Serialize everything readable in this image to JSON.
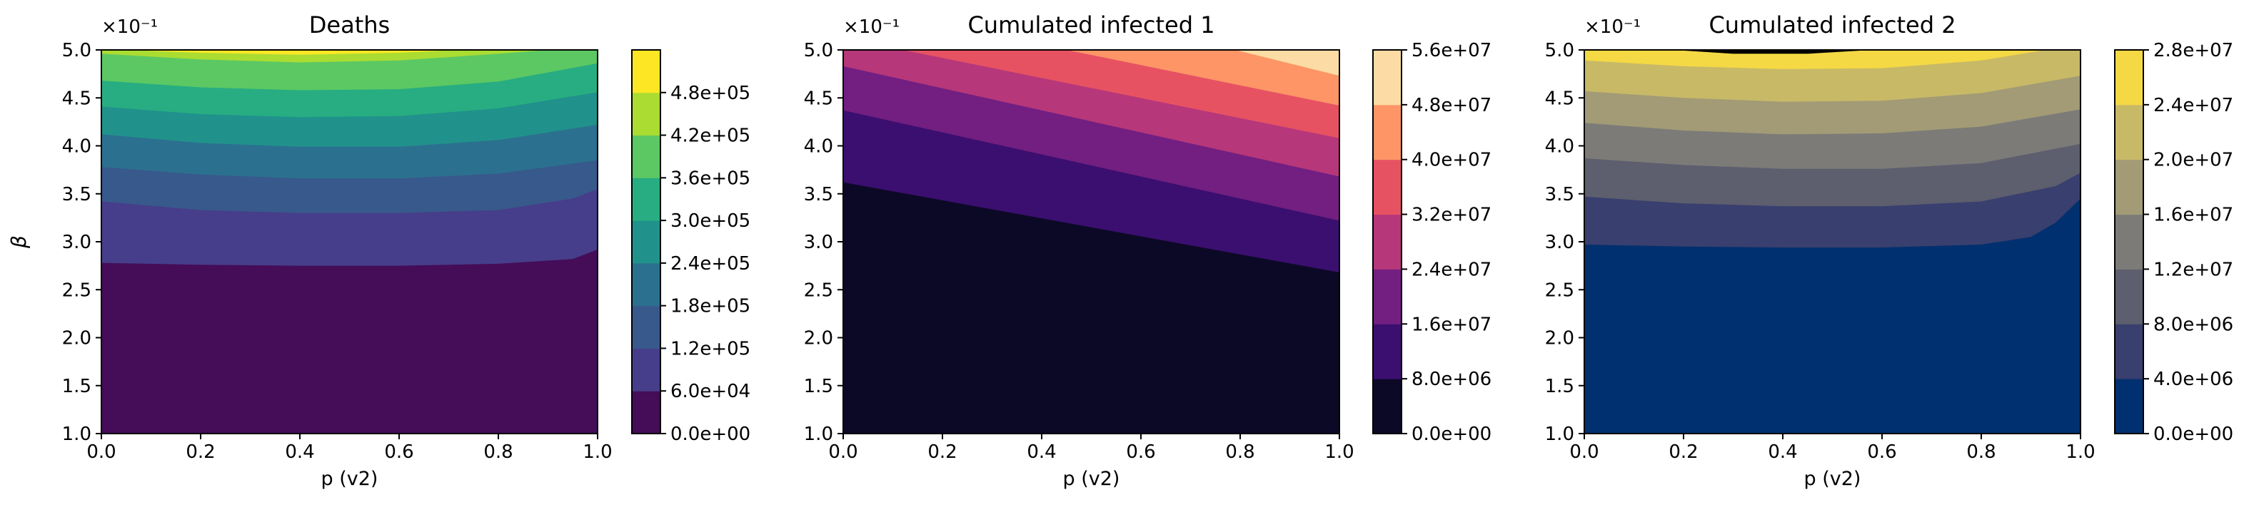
{
  "chart_data": [
    {
      "type": "contour",
      "title": "Deaths",
      "xlabel": "p (v2)",
      "ylabel": "β",
      "y_multiplier": "×10⁻¹",
      "xlim": [
        0.0,
        1.0
      ],
      "ylim": [
        1.0,
        5.0
      ],
      "x_ticks": [
        "0.0",
        "0.2",
        "0.4",
        "0.6",
        "0.8",
        "1.0"
      ],
      "y_ticks": [
        "1.0",
        "1.5",
        "2.0",
        "2.5",
        "3.0",
        "3.5",
        "4.0",
        "4.5",
        "5.0"
      ],
      "colorbar_levels": [
        "0.0e+00",
        "6.0e+04",
        "1.2e+05",
        "1.8e+05",
        "2.4e+05",
        "3.0e+05",
        "3.6e+05",
        "4.2e+05",
        "4.8e+05"
      ],
      "colors": [
        "#450c58",
        "#463e8a",
        "#38598b",
        "#2c708f",
        "#21918c",
        "#27ad81",
        "#5cc863",
        "#aadc32",
        "#fde725"
      ],
      "boundaries": [
        {
          "x": [
            0.0,
            0.2,
            0.4,
            0.6,
            0.8,
            0.95,
            1.0
          ],
          "y": [
            2.78,
            2.76,
            2.75,
            2.75,
            2.77,
            2.82,
            2.92
          ]
        },
        {
          "x": [
            0.0,
            0.2,
            0.4,
            0.6,
            0.8,
            0.95,
            1.0
          ],
          "y": [
            3.42,
            3.33,
            3.3,
            3.3,
            3.33,
            3.45,
            3.55
          ]
        },
        {
          "x": [
            0.0,
            0.2,
            0.4,
            0.6,
            0.8,
            1.0
          ],
          "y": [
            3.78,
            3.7,
            3.66,
            3.66,
            3.71,
            3.85
          ]
        },
        {
          "x": [
            0.0,
            0.2,
            0.4,
            0.6,
            0.8,
            1.0
          ],
          "y": [
            4.12,
            4.03,
            3.99,
            3.99,
            4.06,
            4.22
          ]
        },
        {
          "x": [
            0.0,
            0.2,
            0.4,
            0.6,
            0.8,
            1.0
          ],
          "y": [
            4.41,
            4.33,
            4.3,
            4.31,
            4.39,
            4.56
          ]
        },
        {
          "x": [
            0.0,
            0.2,
            0.4,
            0.6,
            0.8,
            1.0
          ],
          "y": [
            4.68,
            4.61,
            4.58,
            4.59,
            4.67,
            4.86
          ]
        },
        {
          "x": [
            0.0,
            0.2,
            0.4,
            0.6,
            0.8,
            0.9
          ],
          "y": [
            4.96,
            4.9,
            4.87,
            4.89,
            4.96,
            5.0
          ]
        },
        {
          "x": [
            0.05,
            0.2,
            0.4,
            0.6,
            0.72
          ],
          "y": [
            5.0,
            4.97,
            4.95,
            4.97,
            5.0
          ]
        }
      ]
    },
    {
      "type": "contour",
      "title": "Cumulated infected 1",
      "xlabel": "p (v2)",
      "ylabel": "",
      "y_multiplier": "×10⁻¹",
      "xlim": [
        0.0,
        1.0
      ],
      "ylim": [
        1.0,
        5.0
      ],
      "x_ticks": [
        "0.0",
        "0.2",
        "0.4",
        "0.6",
        "0.8",
        "1.0"
      ],
      "y_ticks": [
        "1.0",
        "1.5",
        "2.0",
        "2.5",
        "3.0",
        "3.5",
        "4.0",
        "4.5",
        "5.0"
      ],
      "colorbar_levels": [
        "0.0e+00",
        "8.0e+06",
        "1.6e+07",
        "2.4e+07",
        "3.2e+07",
        "4.0e+07",
        "4.8e+07",
        "5.6e+07"
      ],
      "colors": [
        "#0c0927",
        "#3b0f70",
        "#721f81",
        "#b6377a",
        "#e75263",
        "#fd9567",
        "#fcdca4"
      ],
      "boundaries": [
        {
          "x": [
            0.0,
            1.0
          ],
          "y": [
            3.62,
            2.68
          ]
        },
        {
          "x": [
            0.0,
            1.0
          ],
          "y": [
            4.37,
            3.22
          ]
        },
        {
          "x": [
            0.0,
            1.0
          ],
          "y": [
            4.83,
            3.68
          ]
        },
        {
          "x": [
            0.12,
            1.0
          ],
          "y": [
            5.0,
            4.08
          ]
        },
        {
          "x": [
            0.45,
            1.0
          ],
          "y": [
            5.0,
            4.42
          ]
        },
        {
          "x": [
            0.79,
            1.0
          ],
          "y": [
            5.0,
            4.73
          ]
        }
      ]
    },
    {
      "type": "contour",
      "title": "Cumulated infected 2",
      "xlabel": "p (v2)",
      "ylabel": "",
      "y_multiplier": "×10⁻¹",
      "xlim": [
        0.0,
        1.0
      ],
      "ylim": [
        1.0,
        5.0
      ],
      "x_ticks": [
        "0.0",
        "0.2",
        "0.4",
        "0.6",
        "0.8",
        "1.0"
      ],
      "y_ticks": [
        "1.0",
        "1.5",
        "2.0",
        "2.5",
        "3.0",
        "3.5",
        "4.0",
        "4.5",
        "5.0"
      ],
      "colorbar_levels": [
        "0.0e+00",
        "4.0e+06",
        "8.0e+06",
        "1.2e+07",
        "1.6e+07",
        "2.0e+07",
        "2.4e+07",
        "2.8e+07"
      ],
      "colors": [
        "#00306f",
        "#393f6e",
        "#5d5e6e",
        "#7c7b78",
        "#a29b76",
        "#c8b967",
        "#f5d944"
      ],
      "boundaries": [
        {
          "x": [
            0.0,
            0.2,
            0.4,
            0.6,
            0.8,
            0.9,
            0.95,
            1.0
          ],
          "y": [
            2.97,
            2.95,
            2.94,
            2.94,
            2.97,
            3.05,
            3.2,
            3.45
          ]
        },
        {
          "x": [
            0.0,
            0.2,
            0.4,
            0.6,
            0.8,
            0.95,
            1.0
          ],
          "y": [
            3.47,
            3.4,
            3.37,
            3.37,
            3.42,
            3.58,
            3.72
          ]
        },
        {
          "x": [
            0.0,
            0.2,
            0.4,
            0.6,
            0.8,
            1.0
          ],
          "y": [
            3.87,
            3.8,
            3.76,
            3.76,
            3.82,
            4.02
          ]
        },
        {
          "x": [
            0.0,
            0.2,
            0.4,
            0.6,
            0.8,
            1.0
          ],
          "y": [
            4.24,
            4.16,
            4.12,
            4.13,
            4.2,
            4.38
          ]
        },
        {
          "x": [
            0.0,
            0.2,
            0.4,
            0.6,
            0.8,
            1.0
          ],
          "y": [
            4.57,
            4.5,
            4.46,
            4.47,
            4.55,
            4.73
          ]
        },
        {
          "x": [
            0.0,
            0.2,
            0.4,
            0.6,
            0.8,
            0.93
          ],
          "y": [
            4.89,
            4.83,
            4.8,
            4.81,
            4.89,
            5.0
          ]
        },
        {
          "x": [
            0.18,
            0.3,
            0.45,
            0.58
          ],
          "y": [
            5.0,
            4.96,
            4.96,
            5.0
          ]
        }
      ]
    }
  ]
}
